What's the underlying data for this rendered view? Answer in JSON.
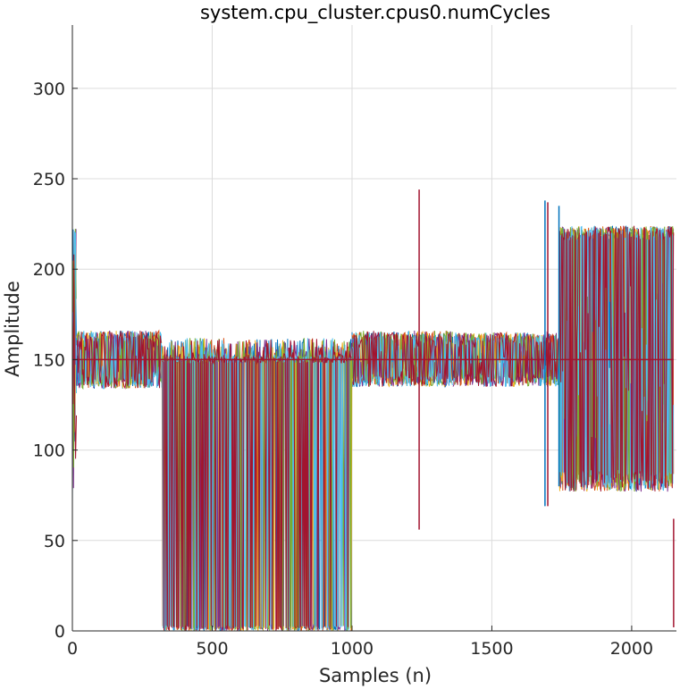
{
  "chart_data": {
    "type": "line",
    "title": "system.cpu_cluster.cpus0.numCycles",
    "xlabel": "Samples (n)",
    "ylabel": "Amplitude",
    "xlim": [
      0,
      2160
    ],
    "ylim": [
      0,
      335
    ],
    "xticks": [
      0,
      500,
      1000,
      1500,
      2000
    ],
    "yticks": [
      0,
      50,
      100,
      150,
      200,
      250,
      300
    ],
    "grid": true,
    "legend": "none",
    "colors": [
      "#0072BD",
      "#D95319",
      "#EDB120",
      "#7E2F8E",
      "#77AC30",
      "#4DBEEE",
      "#A2142F"
    ],
    "segments": [
      {
        "x_start": 0,
        "x_end": 15,
        "center": 150,
        "min": 70,
        "max": 235,
        "style": "spike"
      },
      {
        "x_start": 15,
        "x_end": 320,
        "center": 150,
        "min": 134,
        "max": 166,
        "style": "band"
      },
      {
        "x_start": 320,
        "x_end": 1000,
        "center": 150,
        "min": 0,
        "max": 165,
        "style": "drop"
      },
      {
        "x_start": 1000,
        "x_end": 1360,
        "center": 150,
        "min": 135,
        "max": 166,
        "style": "band"
      },
      {
        "x_start": 1360,
        "x_end": 1740,
        "center": 150,
        "min": 135,
        "max": 165,
        "style": "band"
      },
      {
        "x_start": 1740,
        "x_end": 2150,
        "center": 150,
        "min": 77,
        "max": 224,
        "style": "wide"
      }
    ],
    "events": [
      {
        "x": 1240,
        "min": 56,
        "max": 244
      },
      {
        "x": 1690,
        "min": 69,
        "max": 238
      },
      {
        "x": 1700,
        "min": 69,
        "max": 237
      },
      {
        "x": 1740,
        "min": 80,
        "max": 235
      },
      {
        "x": 2150,
        "min": 2,
        "max": 62
      }
    ]
  }
}
